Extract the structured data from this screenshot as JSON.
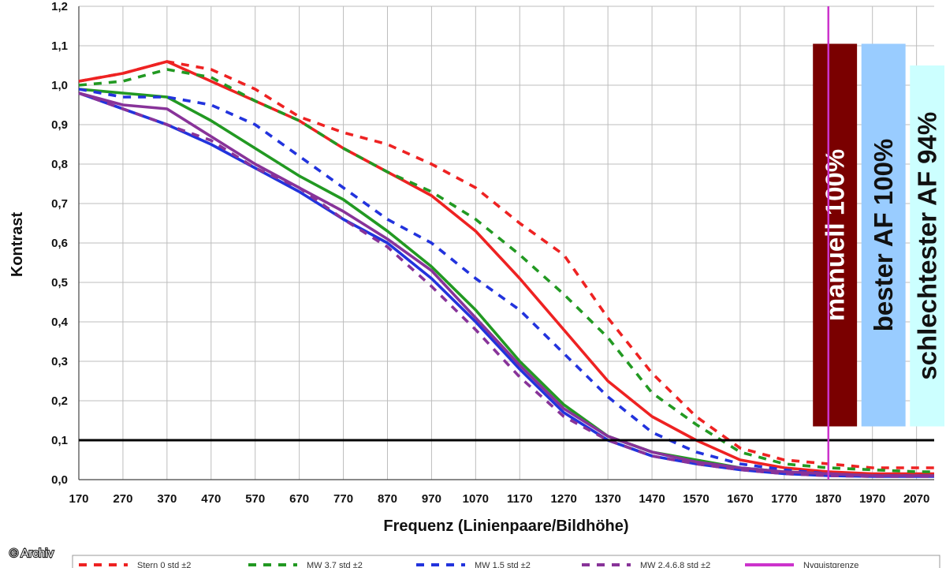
{
  "chart_data": {
    "type": "line",
    "title": "",
    "xlabel": "Frequenz (Linienpaare/Bildhöhe)",
    "ylabel": "Kontrast",
    "xlim": [
      170,
      2110
    ],
    "ylim": [
      0,
      1.2
    ],
    "x_ticks": [
      170,
      270,
      370,
      470,
      570,
      670,
      770,
      870,
      970,
      1070,
      1170,
      1270,
      1370,
      1470,
      1570,
      1670,
      1770,
      1870,
      1970,
      2070
    ],
    "y_ticks": [
      "0,0",
      "0,1",
      "0,2",
      "0,3",
      "0,4",
      "0,5",
      "0,6",
      "0,7",
      "0,8",
      "0,9",
      "1,0",
      "1,1",
      "1,2"
    ],
    "grid": true,
    "threshold_line": {
      "y": 0.1,
      "color": "#000000"
    },
    "nyquist_line": {
      "x": 1870,
      "color": "#cc33cc"
    },
    "series": [
      {
        "name": "Stern 0 std ±2",
        "color": "#ee2222",
        "dash": true,
        "x": [
          170,
          270,
          370,
          470,
          570,
          670,
          770,
          870,
          970,
          1070,
          1170,
          1270,
          1370,
          1470,
          1570,
          1670,
          1770,
          1870,
          1970,
          2070,
          2110
        ],
        "y": [
          1.01,
          1.03,
          1.06,
          1.04,
          0.99,
          0.92,
          0.88,
          0.85,
          0.8,
          0.74,
          0.65,
          0.57,
          0.41,
          0.27,
          0.16,
          0.08,
          0.05,
          0.04,
          0.03,
          0.03,
          0.03
        ]
      },
      {
        "name": "",
        "color": "#ee2222",
        "dash": false,
        "x": [
          170,
          270,
          370,
          470,
          570,
          670,
          770,
          870,
          970,
          1070,
          1170,
          1270,
          1370,
          1470,
          1570,
          1670,
          1770,
          1870,
          1970,
          2070,
          2110
        ],
        "y": [
          1.01,
          1.03,
          1.06,
          1.01,
          0.96,
          0.91,
          0.84,
          0.78,
          0.72,
          0.63,
          0.51,
          0.38,
          0.25,
          0.16,
          0.1,
          0.05,
          0.03,
          0.02,
          0.015,
          0.015,
          0.015
        ]
      },
      {
        "name": "MW 3,7 std ±2",
        "color": "#229922",
        "dash": true,
        "x": [
          170,
          270,
          370,
          470,
          570,
          670,
          770,
          870,
          970,
          1070,
          1170,
          1270,
          1370,
          1470,
          1570,
          1670,
          1770,
          1870,
          1970,
          2070,
          2110
        ],
        "y": [
          1.0,
          1.01,
          1.04,
          1.02,
          0.96,
          0.91,
          0.84,
          0.78,
          0.73,
          0.66,
          0.57,
          0.47,
          0.36,
          0.22,
          0.14,
          0.07,
          0.04,
          0.03,
          0.025,
          0.02,
          0.02
        ]
      },
      {
        "name": "",
        "color": "#229922",
        "dash": false,
        "x": [
          170,
          270,
          370,
          470,
          570,
          670,
          770,
          870,
          970,
          1070,
          1170,
          1270,
          1370,
          1470,
          1570,
          1670,
          1770,
          1870,
          1970,
          2070,
          2110
        ],
        "y": [
          0.99,
          0.98,
          0.97,
          0.91,
          0.84,
          0.77,
          0.71,
          0.63,
          0.54,
          0.43,
          0.3,
          0.19,
          0.11,
          0.07,
          0.05,
          0.03,
          0.02,
          0.015,
          0.01,
          0.01,
          0.01
        ]
      },
      {
        "name": "MW 1,5 std ±2",
        "color": "#2233dd",
        "dash": true,
        "x": [
          170,
          270,
          370,
          470,
          570,
          670,
          770,
          870,
          970,
          1070,
          1170,
          1270,
          1370,
          1470,
          1570,
          1670,
          1770,
          1870,
          1970,
          2070,
          2110
        ],
        "y": [
          0.99,
          0.97,
          0.97,
          0.95,
          0.9,
          0.82,
          0.74,
          0.66,
          0.6,
          0.51,
          0.43,
          0.32,
          0.21,
          0.12,
          0.07,
          0.04,
          0.025,
          0.015,
          0.01,
          0.01,
          0.01
        ]
      },
      {
        "name": "",
        "color": "#2233dd",
        "dash": false,
        "x": [
          170,
          270,
          370,
          470,
          570,
          670,
          770,
          870,
          970,
          1070,
          1170,
          1270,
          1370,
          1470,
          1570,
          1670,
          1770,
          1870,
          1970,
          2070,
          2110
        ],
        "y": [
          0.98,
          0.94,
          0.9,
          0.85,
          0.79,
          0.73,
          0.66,
          0.6,
          0.51,
          0.4,
          0.28,
          0.17,
          0.1,
          0.06,
          0.04,
          0.025,
          0.015,
          0.01,
          0.008,
          0.008,
          0.008
        ]
      },
      {
        "name": "MW 2,4,6,8 std ±2",
        "color": "#883399",
        "dash": true,
        "x": [
          170,
          270,
          370,
          470,
          570,
          670,
          770,
          870,
          970,
          1070,
          1170,
          1270,
          1370,
          1470,
          1570,
          1670,
          1770,
          1870,
          1970,
          2070,
          2110
        ],
        "y": [
          0.98,
          0.94,
          0.9,
          0.86,
          0.79,
          0.74,
          0.66,
          0.59,
          0.49,
          0.38,
          0.26,
          0.16,
          0.1,
          0.06,
          0.04,
          0.025,
          0.015,
          0.01,
          0.008,
          0.008,
          0.008
        ]
      },
      {
        "name": "",
        "color": "#883399",
        "dash": false,
        "x": [
          170,
          270,
          370,
          470,
          570,
          670,
          770,
          870,
          970,
          1070,
          1170,
          1270,
          1370,
          1470,
          1570,
          1670,
          1770,
          1870,
          1970,
          2070,
          2110
        ],
        "y": [
          0.98,
          0.95,
          0.94,
          0.87,
          0.8,
          0.74,
          0.68,
          0.61,
          0.53,
          0.41,
          0.29,
          0.18,
          0.11,
          0.07,
          0.045,
          0.03,
          0.02,
          0.015,
          0.01,
          0.01,
          0.01
        ]
      }
    ],
    "bars": [
      {
        "label": "manuell 100%",
        "x_from": 1835,
        "x_to": 1935,
        "value": 1.105,
        "bottom": 0.135,
        "fill": "#7a0000",
        "text_color": "#ffffff"
      },
      {
        "label": "bester AF 100%",
        "x_from": 1945,
        "x_to": 2045,
        "value": 1.105,
        "bottom": 0.135,
        "fill": "#99ccff",
        "text_color": "#111111"
      },
      {
        "label": "schlechtester AF 94%",
        "x_from": 2055,
        "x_to": 2155,
        "value": 1.05,
        "bottom": 0.135,
        "fill": "#ccffff",
        "text_color": "#111111"
      }
    ],
    "legend": {
      "placement": "bottom",
      "entries": [
        {
          "label": "Stern 0 std ±2",
          "color": "#ee2222",
          "dash": true
        },
        {
          "label": "MW 3,7 std ±2",
          "color": "#229922",
          "dash": true
        },
        {
          "label": "MW 1,5 std ±2",
          "color": "#2233dd",
          "dash": true
        },
        {
          "label": "MW 2,4,6,8 std ±2",
          "color": "#883399",
          "dash": true
        },
        {
          "label": "Nyquistgrenze",
          "color": "#cc33cc",
          "dash": false
        }
      ]
    }
  },
  "credit": "© Archiv"
}
